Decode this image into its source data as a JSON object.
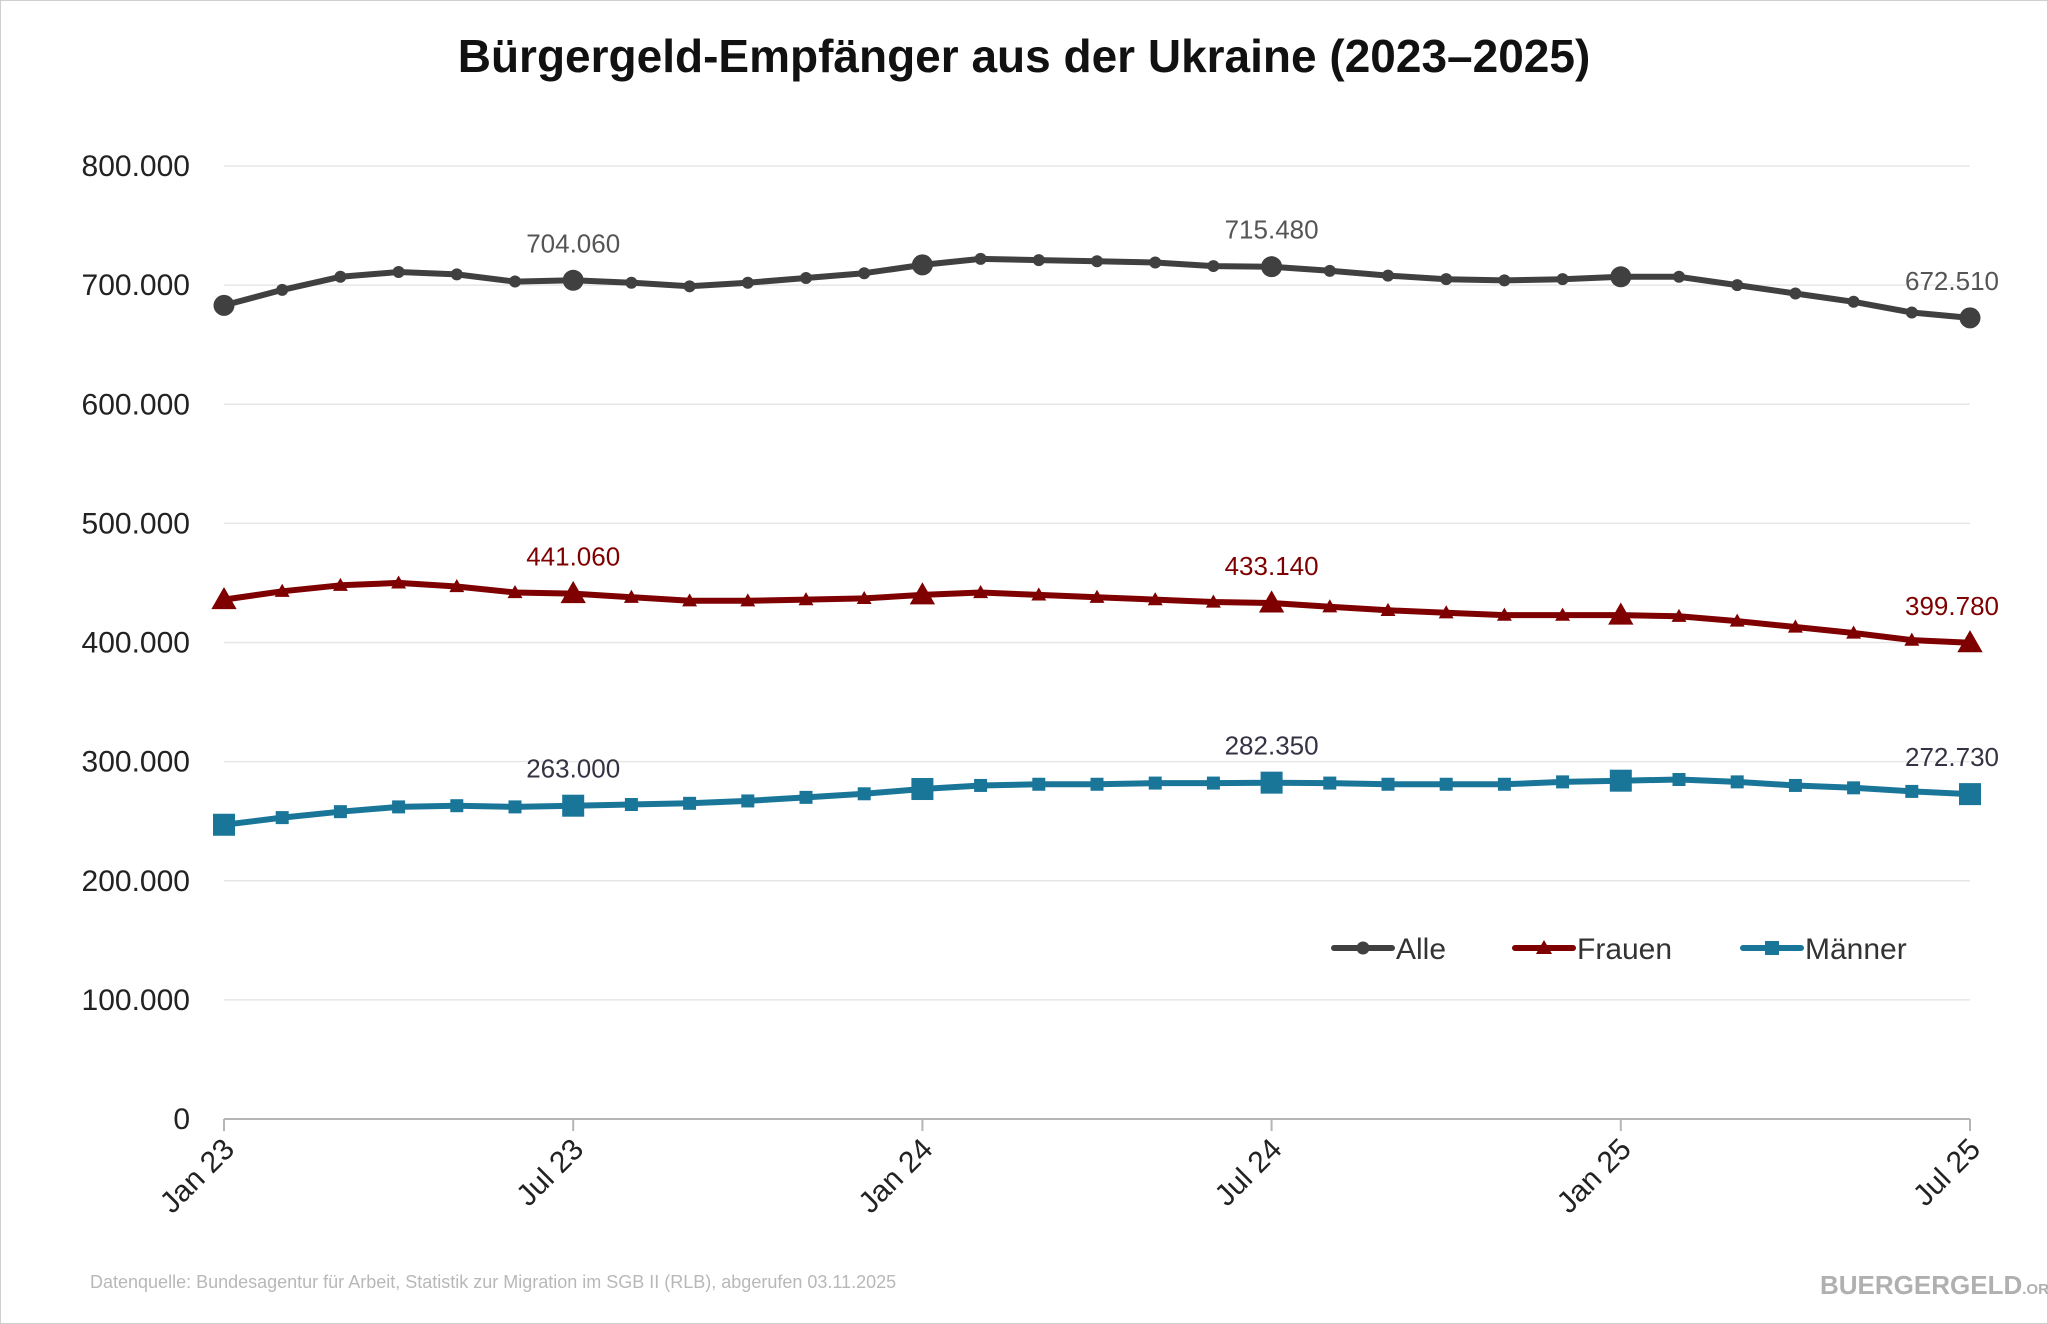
{
  "chart_data": {
    "type": "line",
    "title": "Bürgergeld-Empfänger aus der Ukraine (2023–2025)",
    "x": [
      "Jan 23",
      "Feb 23",
      "Mrz 23",
      "Apr 23",
      "Mai 23",
      "Jun 23",
      "Jul 23",
      "Aug 23",
      "Sep 23",
      "Okt 23",
      "Nov 23",
      "Dez 23",
      "Jan 24",
      "Feb 24",
      "Mrz 24",
      "Apr 24",
      "Mai 24",
      "Jun 24",
      "Jul 24",
      "Aug 24",
      "Sep 24",
      "Okt 24",
      "Nov 24",
      "Dez 24",
      "Jan 25",
      "Feb 25",
      "Mrz 25",
      "Apr 25",
      "Mai 25",
      "Jun 25",
      "Jul 25"
    ],
    "x_ticks": [
      "Jan 23",
      "Jul 23",
      "Jan 24",
      "Jul 24",
      "Jan 25",
      "Jul 25"
    ],
    "x_tick_indices": [
      0,
      6,
      12,
      18,
      24,
      30
    ],
    "ylim": [
      0,
      800000
    ],
    "y_ticks": [
      0,
      100000,
      200000,
      300000,
      400000,
      500000,
      600000,
      700000,
      800000
    ],
    "y_tick_labels": [
      "0",
      "100.000",
      "200.000",
      "300.000",
      "400.000",
      "500.000",
      "600.000",
      "700.000",
      "800.000"
    ],
    "grid": true,
    "legend_position": "bottom-right",
    "series": [
      {
        "name": "Alle",
        "color": "#404040",
        "marker": "circle",
        "values": [
          683000,
          696000,
          707000,
          711000,
          709000,
          703000,
          704060,
          702000,
          699000,
          702000,
          706000,
          710000,
          717000,
          722000,
          721000,
          720000,
          719000,
          716000,
          715480,
          712000,
          708000,
          705000,
          704000,
          705000,
          707000,
          707000,
          700000,
          693000,
          686000,
          677000,
          672510
        ],
        "labels": [
          {
            "index": 6,
            "text": "704.060"
          },
          {
            "index": 18,
            "text": "715.480"
          },
          {
            "index": 30,
            "text": "672.510"
          }
        ]
      },
      {
        "name": "Frauen",
        "color": "#7f0000",
        "marker": "triangle",
        "values": [
          436000,
          443000,
          448000,
          450000,
          447000,
          442000,
          441060,
          438000,
          435000,
          435000,
          436000,
          437000,
          440000,
          442000,
          440000,
          438000,
          436000,
          434000,
          433140,
          430000,
          427000,
          425000,
          423000,
          423000,
          423000,
          422000,
          418000,
          413000,
          408000,
          402000,
          399780
        ],
        "labels": [
          {
            "index": 6,
            "text": "441.060"
          },
          {
            "index": 18,
            "text": "433.140"
          },
          {
            "index": 30,
            "text": "399.780"
          }
        ]
      },
      {
        "name": "Männer",
        "color": "#1a7699",
        "marker": "square",
        "values": [
          247000,
          253000,
          258000,
          262000,
          263000,
          262000,
          263000,
          264000,
          265000,
          267000,
          270000,
          273000,
          277000,
          280000,
          281000,
          281000,
          282000,
          282000,
          282350,
          282000,
          281000,
          281000,
          281000,
          283000,
          284000,
          285000,
          283000,
          280000,
          278000,
          275000,
          272730
        ],
        "labels": [
          {
            "index": 6,
            "text": "263.000"
          },
          {
            "index": 18,
            "text": "282.350"
          },
          {
            "index": 30,
            "text": "272.730"
          }
        ]
      }
    ]
  },
  "footer": {
    "source": "Datenquelle: Bundesagentur für Arbeit, Statistik zur Migration im SGB II (RLB), abgerufen 03.11.2025",
    "brand": "BUERGERGELD",
    "brand_suffix": ".ORG"
  }
}
